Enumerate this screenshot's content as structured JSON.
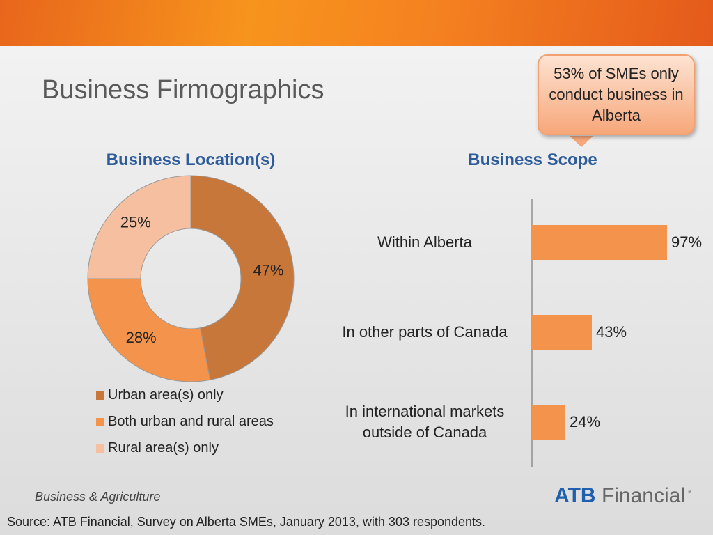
{
  "slide": {
    "title": "Business Firmographics",
    "callout": "53% of SMEs only conduct business in Alberta",
    "footer": "Business & Agriculture",
    "logo": {
      "brand": "ATB",
      "name": "Financial",
      "mark": "™"
    },
    "source": "Source:  ATB Financial, Survey on Alberta SMEs, January 2013, with 303 respondents."
  },
  "chart_data": [
    {
      "type": "donut",
      "title": "Business Location(s)",
      "categories": [
        "Urban area(s) only",
        "Both urban and rural areas",
        "Rural area(s) only"
      ],
      "values": [
        47,
        28,
        25
      ],
      "value_labels": [
        "47%",
        "28%",
        "25%"
      ],
      "colors": [
        "#c8773a",
        "#f4944c",
        "#f6c0a0"
      ],
      "legend": "bottom"
    },
    {
      "type": "hbar",
      "title": "Business Scope",
      "categories": [
        "Within Alberta",
        "In other parts of Canada",
        "In international markets outside of Canada"
      ],
      "values": [
        97,
        43,
        24
      ],
      "value_labels": [
        "97%",
        "43%",
        "24%"
      ],
      "color": "#f4944c",
      "xlim": [
        0,
        100
      ]
    }
  ]
}
